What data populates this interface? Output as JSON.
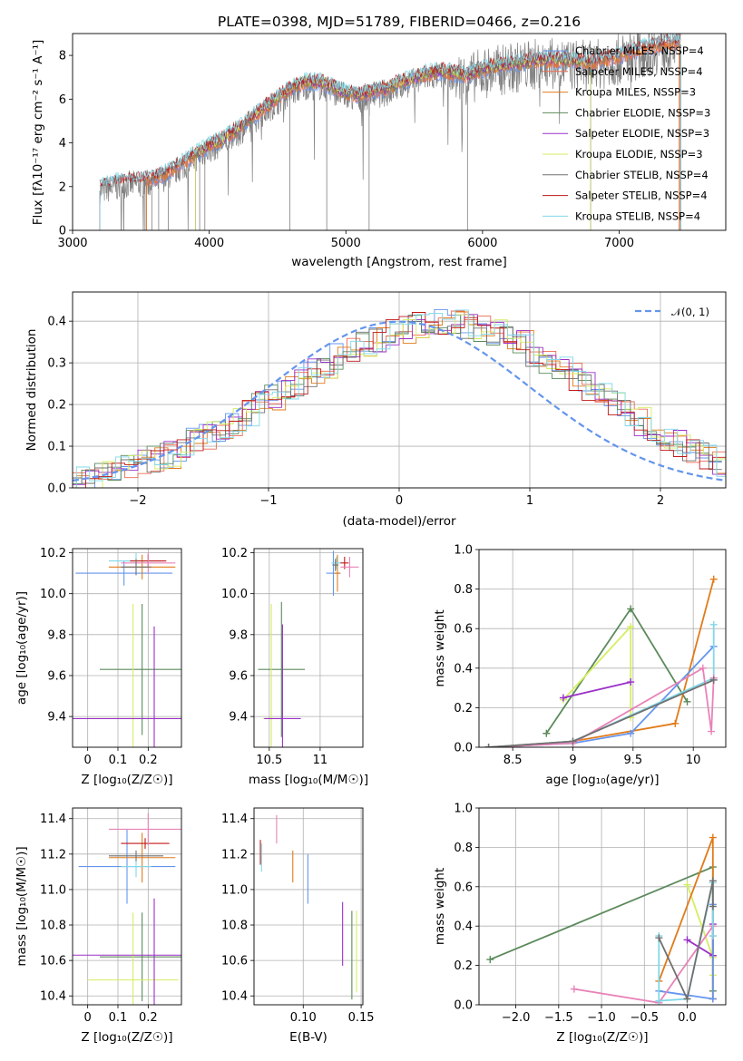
{
  "figure": {
    "title": "PLATE=0398, MJD=51789, FIBERID=0466, z=0.216"
  },
  "colors": {
    "Chabrier MILES": "#6495ed",
    "Salpeter MILES": "#ee6a50",
    "Kroupa MILES": "#e07b1a",
    "Chabrier ELODIE": "#5b8a5b",
    "Salpeter ELODIE": "#9b30c8",
    "Kroupa ELODIE": "#d4ee60",
    "Chabrier STELIB": "#707070",
    "Salpeter STELIB": "#c01818",
    "Kroupa STELIB": "#80d8e8",
    "data": "#808080",
    "norm": "#6495ed",
    "pink": "#e883b8"
  },
  "panels": {
    "spectrum": {
      "ylabel": "Flux [fλ10⁻¹⁷ erg cm⁻² s⁻¹ A⁻¹]",
      "xlabel": "wavelength [Angstrom, rest frame]",
      "legend": [
        "Chabrier MILES, NSSP=4",
        "Salpeter MILES, NSSP=4",
        "Kroupa MILES, NSSP=3",
        "Chabrier ELODIE, NSSP=3",
        "Salpeter ELODIE, NSSP=3",
        "Kroupa ELODIE, NSSP=3",
        "Chabrier STELIB, NSSP=4",
        "Salpeter STELIB, NSSP=4",
        "Kroupa STELIB, NSSP=4"
      ]
    },
    "hist": {
      "ylabel": "Normed distribution",
      "xlabel": "(data-model)/error",
      "legend": "𝒩(0, 1)"
    },
    "ageZ": {
      "ylabel": "age  [log₁₀(age/yr)]",
      "xlabel": "Z [log₁₀(Z/Z☉)]"
    },
    "ageMass": {
      "xlabel": "mass [log₁₀(M/M☉)]"
    },
    "weightAge": {
      "ylabel": "mass weight",
      "xlabel": "age  [log₁₀(age/yr)]"
    },
    "massZ": {
      "ylabel": "mass [log₁₀(M/M☉)]",
      "xlabel": "Z [log₁₀(Z/Z☉)]"
    },
    "massEbv": {
      "xlabel": "E(B-V)"
    },
    "weightZ": {
      "ylabel": "mass weight",
      "xlabel": "Z [log₁₀(Z/Z☉)]"
    }
  },
  "chart_data": [
    {
      "id": "spectrum",
      "type": "line",
      "title": "PLATE=0398, MJD=51789, FIBERID=0466, z=0.216",
      "xlabel": "wavelength [Angstrom, rest frame]",
      "ylabel": "Flux [fλ10⁻¹⁷ erg cm⁻² s⁻¹ A⁻¹]",
      "xlim": [
        3000,
        7780
      ],
      "ylim": [
        0,
        9
      ],
      "xticks": [
        3000,
        4000,
        5000,
        6000,
        7000
      ],
      "yticks": [
        0,
        2,
        4,
        6,
        8
      ],
      "grid": false,
      "legend_position": "top-right",
      "continuum": {
        "x": [
          3200,
          3300,
          3400,
          3500,
          3600,
          3700,
          3800,
          3900,
          4000,
          4100,
          4200,
          4300,
          4400,
          4500,
          4600,
          4700,
          4800,
          4900,
          5000,
          5100,
          5200,
          5300,
          5400,
          5500,
          5600,
          5700,
          5800,
          5900,
          6000,
          6200,
          6400,
          6600,
          6800,
          7000,
          7200,
          7450
        ],
        "y": [
          1.8,
          1.95,
          2.1,
          2.1,
          2.2,
          2.5,
          2.9,
          3.3,
          3.7,
          4.0,
          4.4,
          4.9,
          5.4,
          5.9,
          6.3,
          6.6,
          6.6,
          6.4,
          6.1,
          6.0,
          6.2,
          6.3,
          6.6,
          6.8,
          7.0,
          7.1,
          7.0,
          6.9,
          7.2,
          7.4,
          7.6,
          7.6,
          7.5,
          7.8,
          8.2,
          8.5
        ]
      },
      "series": [
        {
          "name": "Chabrier MILES, NSSP=4",
          "wave_start": 3540,
          "wave_end": 7440
        },
        {
          "name": "Salpeter MILES, NSSP=4",
          "wave_start": 3540,
          "wave_end": 7440
        },
        {
          "name": "Kroupa MILES, NSSP=3",
          "wave_start": 3540,
          "wave_end": 7440
        },
        {
          "name": "Chabrier ELODIE, NSSP=3",
          "wave_start": 3900,
          "wave_end": 6790
        },
        {
          "name": "Salpeter ELODIE, NSSP=3",
          "wave_start": 3900,
          "wave_end": 6790
        },
        {
          "name": "Kroupa ELODIE, NSSP=3",
          "wave_start": 3900,
          "wave_end": 6790
        },
        {
          "name": "Chabrier STELIB, NSSP=4",
          "wave_start": 3200,
          "wave_end": 7450
        },
        {
          "name": "Salpeter STELIB, NSSP=4",
          "wave_start": 3200,
          "wave_end": 7450
        },
        {
          "name": "Kroupa STELIB, NSSP=4",
          "wave_start": 3200,
          "wave_end": 7450
        }
      ]
    },
    {
      "id": "hist",
      "type": "bar",
      "xlabel": "(data-model)/error",
      "ylabel": "Normed distribution",
      "xlim": [
        -2.5,
        2.5
      ],
      "ylim": [
        0,
        0.47
      ],
      "xticks": [
        -2,
        -1,
        0,
        1,
        2
      ],
      "xtick_labels": [
        "−2",
        "−1",
        "0",
        "1",
        "2"
      ],
      "yticks": [
        0.0,
        0.1,
        0.2,
        0.3,
        0.4
      ],
      "grid": true,
      "legend_position": "top-right",
      "reference": "𝒩(0, 1)",
      "bin_width": 0.1,
      "histogram": [
        0.018,
        0.022,
        0.03,
        0.04,
        0.05,
        0.058,
        0.07,
        0.08,
        0.095,
        0.11,
        0.125,
        0.14,
        0.16,
        0.18,
        0.2,
        0.215,
        0.235,
        0.255,
        0.275,
        0.295,
        0.315,
        0.33,
        0.345,
        0.36,
        0.37,
        0.382,
        0.39,
        0.395,
        0.4,
        0.398,
        0.392,
        0.385,
        0.372,
        0.36,
        0.345,
        0.325,
        0.305,
        0.285,
        0.265,
        0.245,
        0.225,
        0.2,
        0.18,
        0.16,
        0.14,
        0.12,
        0.105,
        0.09,
        0.075,
        0.06
      ]
    },
    {
      "id": "ageZ",
      "type": "scatter",
      "xlabel": "Z [log₁₀(Z/Z☉)]",
      "ylabel": "age  [log₁₀(age/yr)]",
      "xlim": [
        -0.05,
        0.31
      ],
      "ylim": [
        9.25,
        10.22
      ],
      "xticks": [
        0.0,
        0.1,
        0.2
      ],
      "yticks": [
        9.4,
        9.6,
        9.8,
        10.0,
        10.2
      ],
      "grid": true,
      "points": [
        {
          "c": "Chabrier MILES",
          "x": 0.12,
          "y": 10.1,
          "xe": 0.16,
          "ye": 0.06
        },
        {
          "c": "Kroupa MILES",
          "x": 0.18,
          "y": 10.13,
          "xe": 0.11,
          "ye": 0.06
        },
        {
          "c": "Kroupa STELIB",
          "x": 0.16,
          "y": 10.16,
          "xe": 0.09,
          "ye": 0.04
        },
        {
          "c": "Chabrier ELODIE",
          "x": 0.18,
          "y": 9.63,
          "xe": 0.14,
          "ye": 0.32
        },
        {
          "c": "Kroupa ELODIE",
          "x": 0.15,
          "y": 9.39,
          "xe": 0.15,
          "ye": 0.56
        },
        {
          "c": "Salpeter ELODIE",
          "x": 0.22,
          "y": 9.39,
          "xe": 0.27,
          "ye": 0.45
        },
        {
          "c": "Salpeter STELIB",
          "x": 0.2,
          "y": 10.16,
          "xe": 0.06,
          "ye": 0.03
        },
        {
          "c": "pink",
          "x": 0.2,
          "y": 10.15,
          "xe": 0.09,
          "ye": 0.05
        },
        {
          "c": "Chabrier STELIB",
          "x": 0.16,
          "y": 10.13,
          "xe": 0.05,
          "ye": 0.04
        }
      ]
    },
    {
      "id": "ageMass",
      "type": "scatter",
      "xlabel": "mass [log₁₀(M/M☉)]",
      "ylabel": "",
      "xlim": [
        10.35,
        11.42
      ],
      "ylim": [
        9.25,
        10.22
      ],
      "xticks": [
        10.5,
        11.0
      ],
      "yticks": [
        9.4,
        9.6,
        9.8,
        10.0,
        10.2
      ],
      "grid": true,
      "points": [
        {
          "c": "Chabrier MILES",
          "x": 11.13,
          "y": 10.1,
          "xe": 0.07,
          "ye": 0.11
        },
        {
          "c": "Kroupa MILES",
          "x": 11.17,
          "y": 10.1,
          "xe": 0.03,
          "ye": 0.09
        },
        {
          "c": "Kroupa STELIB",
          "x": 11.16,
          "y": 10.15,
          "xe": 0.05,
          "ye": 0.03
        },
        {
          "c": "Salpeter STELIB",
          "x": 11.24,
          "y": 10.15,
          "xe": 0.04,
          "ye": 0.03
        },
        {
          "c": "pink",
          "x": 11.29,
          "y": 10.13,
          "xe": 0.09,
          "ye": 0.05
        },
        {
          "c": "Chabrier ELODIE",
          "x": 10.62,
          "y": 9.63,
          "xe": 0.23,
          "ye": 0.33
        },
        {
          "c": "Kroupa ELODIE",
          "x": 10.52,
          "y": 9.39,
          "xe": 0.08,
          "ye": 0.56
        },
        {
          "c": "Salpeter ELODIE",
          "x": 10.63,
          "y": 9.39,
          "xe": 0.18,
          "ye": 0.46
        },
        {
          "c": "Chabrier STELIB",
          "x": 11.15,
          "y": 10.14,
          "xe": 0.03,
          "ye": 0.03
        }
      ]
    },
    {
      "id": "weightAge",
      "type": "line",
      "xlabel": "age  [log₁₀(age/yr)]",
      "ylabel": "mass weight",
      "xlim": [
        8.22,
        10.27
      ],
      "ylim": [
        0,
        1
      ],
      "xticks": [
        8.5,
        9.0,
        9.5,
        10.0
      ],
      "yticks": [
        0.0,
        0.2,
        0.4,
        0.6,
        0.8,
        1.0
      ],
      "grid": true,
      "series": [
        {
          "name": "Chabrier ELODIE",
          "x": [
            8.78,
            9.48,
            9.95
          ],
          "y": [
            0.07,
            0.7,
            0.23
          ]
        },
        {
          "name": "Kroupa ELODIE",
          "x": [
            8.92,
            9.48,
            9.48
          ],
          "y": [
            0.24,
            0.61,
            0.15
          ]
        },
        {
          "name": "Salpeter ELODIE",
          "x": [
            8.92,
            9.48
          ],
          "y": [
            0.25,
            0.33
          ]
        },
        {
          "name": "Kroupa MILES",
          "x": [
            8.3,
            9.0,
            9.85,
            10.17
          ],
          "y": [
            0.0,
            0.03,
            0.12,
            0.85
          ]
        },
        {
          "name": "Chabrier MILES",
          "x": [
            8.3,
            9.0,
            9.48,
            10.17
          ],
          "y": [
            0.0,
            0.02,
            0.07,
            0.51
          ]
        },
        {
          "name": "Kroupa STELIB",
          "x": [
            8.3,
            9.0,
            10.17,
            10.17
          ],
          "y": [
            0.0,
            0.03,
            0.35,
            0.62
          ]
        },
        {
          "name": "pink",
          "x": [
            8.3,
            9.0,
            10.08,
            10.15,
            10.17
          ],
          "y": [
            0.0,
            0.02,
            0.4,
            0.08,
            0.35
          ]
        },
        {
          "name": "Chabrier STELIB",
          "x": [
            8.3,
            9.0,
            10.17
          ],
          "y": [
            0.0,
            0.03,
            0.34
          ]
        }
      ]
    },
    {
      "id": "massZ",
      "type": "scatter",
      "xlabel": "Z [log₁₀(Z/Z☉)]",
      "ylabel": "mass [log₁₀(M/M☉)]",
      "xlim": [
        -0.05,
        0.31
      ],
      "ylim": [
        10.35,
        11.46
      ],
      "xticks": [
        0.0,
        0.1,
        0.2
      ],
      "yticks": [
        10.4,
        10.6,
        10.8,
        11.0,
        11.2,
        11.4
      ],
      "grid": true,
      "points": [
        {
          "c": "Chabrier MILES",
          "x": 0.13,
          "y": 11.13,
          "xe": 0.16,
          "ye": 0.21
        },
        {
          "c": "Kroupa MILES",
          "x": 0.18,
          "y": 11.18,
          "xe": 0.11,
          "ye": 0.14
        },
        {
          "c": "Salpeter STELIB",
          "x": 0.19,
          "y": 11.26,
          "xe": 0.08,
          "ye": 0.03
        },
        {
          "c": "pink",
          "x": 0.2,
          "y": 11.34,
          "xe": 0.13,
          "ye": 0.09
        },
        {
          "c": "Kroupa STELIB",
          "x": 0.16,
          "y": 11.13,
          "xe": 0.05,
          "ye": 0.06
        },
        {
          "c": "Chabrier ELODIE",
          "x": 0.18,
          "y": 10.62,
          "xe": 0.14,
          "ye": 0.25
        },
        {
          "c": "Kroupa ELODIE",
          "x": 0.15,
          "y": 10.49,
          "xe": 0.15,
          "ye": 0.38
        },
        {
          "c": "Salpeter ELODIE",
          "x": 0.22,
          "y": 10.63,
          "xe": 0.27,
          "ye": 0.32
        },
        {
          "c": "Chabrier STELIB",
          "x": 0.16,
          "y": 11.19,
          "xe": 0.09,
          "ye": 0.03
        }
      ]
    },
    {
      "id": "massEbv",
      "type": "scatter",
      "xlabel": "E(B-V)",
      "ylabel": "",
      "xlim": [
        0.0575,
        0.1515
      ],
      "ylim": [
        10.35,
        11.46
      ],
      "xticks": [
        0.05,
        0.1,
        0.15
      ],
      "yticks": [
        10.4,
        10.6,
        10.8,
        11.0,
        11.2,
        11.4
      ],
      "grid": true,
      "points": [
        {
          "c": "Salpeter STELIB",
          "x": 0.063,
          "y": 11.21,
          "xe": 0,
          "ye": 0.07
        },
        {
          "c": "Kroupa STELIB",
          "x": 0.064,
          "y": 11.18,
          "xe": 0,
          "ye": 0.08
        },
        {
          "c": "pink",
          "x": 0.077,
          "y": 11.34,
          "xe": 0,
          "ye": 0.08
        },
        {
          "c": "Kroupa MILES",
          "x": 0.091,
          "y": 11.13,
          "xe": 0,
          "ye": 0.09
        },
        {
          "c": "Chabrier MILES",
          "x": 0.104,
          "y": 11.06,
          "xe": 0,
          "ye": 0.14
        },
        {
          "c": "Salpeter ELODIE",
          "x": 0.134,
          "y": 10.75,
          "xe": 0,
          "ye": 0.18
        },
        {
          "c": "Chabrier ELODIE",
          "x": 0.142,
          "y": 10.63,
          "xe": 0,
          "ye": 0.25
        },
        {
          "c": "Kroupa ELODIE",
          "x": 0.146,
          "y": 10.65,
          "xe": 0,
          "ye": 0.23
        }
      ]
    },
    {
      "id": "weightZ",
      "type": "line",
      "xlabel": "Z [log₁₀(Z/Z☉)]",
      "ylabel": "mass weight",
      "xlim": [
        -2.43,
        0.45
      ],
      "ylim": [
        0,
        1
      ],
      "xticks": [
        -2.0,
        -1.5,
        -1.0,
        -0.5,
        0.0
      ],
      "xtick_labels": [
        "−2.0",
        "−1.5",
        "−1.0",
        "−0.5",
        "0.0"
      ],
      "yticks": [
        0.0,
        0.2,
        0.4,
        0.6,
        0.8,
        1.0
      ],
      "grid": true,
      "series": [
        {
          "name": "Chabrier ELODIE",
          "x": [
            -2.3,
            0.3,
            0.3
          ],
          "y": [
            0.23,
            0.7,
            0.07
          ]
        },
        {
          "name": "Kroupa ELODIE",
          "x": [
            0.0,
            0.3,
            0.3
          ],
          "y": [
            0.61,
            0.24,
            0.15
          ]
        },
        {
          "name": "Salpeter ELODIE",
          "x": [
            0.0,
            0.3,
            0.3
          ],
          "y": [
            0.33,
            0.25,
            0.41
          ]
        },
        {
          "name": "Kroupa MILES",
          "x": [
            -0.33,
            0.3,
            0.3
          ],
          "y": [
            0.12,
            0.85,
            0.03
          ]
        },
        {
          "name": "Chabrier MILES",
          "x": [
            -0.33,
            0.3,
            0.3
          ],
          "y": [
            0.07,
            0.03,
            0.51
          ]
        },
        {
          "name": "pink",
          "x": [
            -1.32,
            -0.33,
            0.3,
            0.3
          ],
          "y": [
            0.08,
            0.01,
            0.4,
            0.35
          ]
        },
        {
          "name": "Kroupa STELIB",
          "x": [
            -0.33,
            -0.33,
            0.0,
            0.3,
            0.3
          ],
          "y": [
            0.35,
            0.02,
            0.03,
            0.62,
            0.35
          ]
        },
        {
          "name": "Chabrier STELIB",
          "x": [
            -0.33,
            0.0,
            0.3,
            0.3
          ],
          "y": [
            0.34,
            0.03,
            0.63,
            0.5
          ]
        }
      ]
    }
  ]
}
